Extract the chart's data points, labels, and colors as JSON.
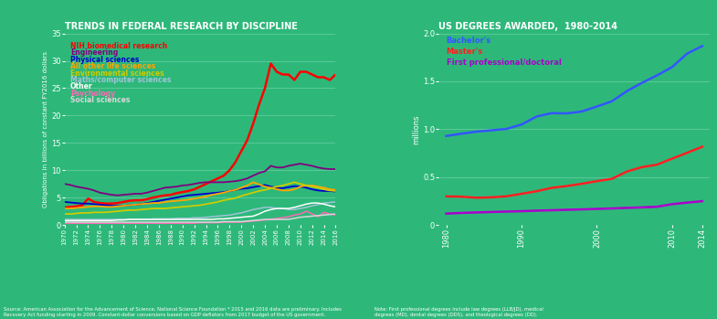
{
  "bg_color": "#2db87a",
  "left_title": "TRENDS IN FEDERAL RESEARCH BY DISCIPLINE",
  "right_title": "US DEGREES AWARDED,  1980-2014",
  "left_ylabel": "Obligations in billions of constant FY2016 dollars",
  "right_ylabel": "millions",
  "left_source": "Source: American Association for the Advancement of Science, National Science Foundation * 2015 and 2016 data are preliminary. Includes\nRecovery Act funding starting in 2009. Constant-dollar conversions based on GDP deflators from 2017 budget of the US government.",
  "right_note": "Note: First professional degrees include law degrees (LLB/JD), medical\ndegrees (MD), dental degrees (DDS), and theological degrees (DD).",
  "left_years": [
    1970,
    1971,
    1972,
    1973,
    1974,
    1975,
    1976,
    1977,
    1978,
    1979,
    1980,
    1981,
    1982,
    1983,
    1984,
    1985,
    1986,
    1987,
    1988,
    1989,
    1990,
    1991,
    1992,
    1993,
    1994,
    1995,
    1996,
    1997,
    1998,
    1999,
    2000,
    2001,
    2002,
    2003,
    2004,
    2005,
    2006,
    2007,
    2008,
    2009,
    2010,
    2011,
    2012,
    2013,
    2014,
    2015,
    2016
  ],
  "NIH": [
    3.2,
    3.3,
    3.4,
    3.6,
    4.8,
    4.2,
    4.0,
    3.9,
    3.9,
    4.0,
    4.2,
    4.4,
    4.5,
    4.5,
    4.7,
    5.0,
    5.2,
    5.4,
    5.5,
    5.8,
    6.0,
    6.2,
    6.5,
    7.0,
    7.5,
    8.0,
    8.5,
    9.0,
    10.0,
    11.5,
    13.5,
    15.5,
    18.5,
    22.0,
    25.0,
    29.5,
    28.0,
    27.5,
    27.5,
    26.5,
    28.0,
    28.0,
    27.5,
    27.0,
    27.0,
    26.5,
    27.5
  ],
  "NIH_color": "#ff0000",
  "Engineering": [
    7.5,
    7.3,
    7.0,
    6.8,
    6.6,
    6.3,
    5.9,
    5.7,
    5.5,
    5.4,
    5.5,
    5.6,
    5.7,
    5.7,
    5.9,
    6.2,
    6.5,
    6.8,
    6.9,
    7.0,
    7.2,
    7.3,
    7.5,
    7.7,
    7.8,
    7.8,
    7.8,
    7.8,
    7.9,
    8.0,
    8.2,
    8.5,
    9.0,
    9.5,
    9.8,
    10.8,
    10.5,
    10.5,
    10.8,
    11.0,
    11.2,
    11.0,
    10.8,
    10.5,
    10.3,
    10.2,
    10.2
  ],
  "Engineering_color": "#800080",
  "Physical": [
    4.2,
    4.1,
    4.0,
    3.9,
    3.9,
    3.8,
    3.7,
    3.6,
    3.5,
    3.5,
    3.5,
    3.6,
    3.7,
    3.8,
    4.0,
    4.2,
    4.4,
    4.6,
    4.8,
    5.0,
    5.2,
    5.4,
    5.5,
    5.6,
    5.7,
    5.8,
    5.9,
    6.0,
    6.2,
    6.4,
    6.6,
    6.7,
    6.9,
    7.1,
    7.3,
    7.0,
    6.8,
    6.7,
    6.9,
    7.1,
    7.0,
    6.8,
    6.5,
    6.3,
    6.2,
    6.2,
    6.1
  ],
  "Physical_color": "#0000cd",
  "AllOtherLife": [
    3.0,
    3.0,
    3.1,
    3.2,
    3.3,
    3.4,
    3.4,
    3.3,
    3.3,
    3.4,
    3.5,
    3.6,
    3.7,
    3.8,
    3.9,
    4.0,
    4.0,
    4.2,
    4.3,
    4.4,
    4.5,
    4.6,
    4.8,
    5.0,
    5.2,
    5.5,
    5.7,
    5.9,
    6.2,
    6.4,
    6.8,
    7.2,
    7.8,
    7.4,
    7.0,
    6.8,
    6.5,
    6.3,
    6.3,
    6.5,
    7.0,
    7.2,
    7.2,
    7.0,
    6.8,
    6.5,
    6.4
  ],
  "AllOtherLife_color": "#ffa500",
  "Environmental": [
    2.0,
    2.0,
    2.1,
    2.2,
    2.2,
    2.3,
    2.3,
    2.3,
    2.4,
    2.5,
    2.6,
    2.7,
    2.7,
    2.8,
    2.9,
    3.0,
    3.0,
    3.0,
    3.1,
    3.2,
    3.3,
    3.4,
    3.5,
    3.6,
    3.8,
    4.0,
    4.2,
    4.5,
    4.7,
    4.9,
    5.3,
    5.6,
    5.9,
    6.2,
    6.4,
    6.7,
    7.0,
    7.2,
    7.5,
    7.8,
    7.5,
    7.2,
    7.0,
    6.8,
    6.5,
    6.3,
    6.2
  ],
  "Environmental_color": "#cccc00",
  "Maths": [
    1.0,
    1.0,
    1.0,
    1.0,
    1.0,
    1.0,
    1.0,
    1.0,
    1.0,
    1.0,
    1.0,
    1.0,
    1.0,
    1.0,
    1.0,
    1.1,
    1.1,
    1.1,
    1.1,
    1.2,
    1.2,
    1.2,
    1.3,
    1.3,
    1.4,
    1.5,
    1.6,
    1.7,
    1.8,
    2.0,
    2.2,
    2.5,
    2.8,
    3.0,
    3.2,
    3.2,
    3.0,
    3.0,
    2.8,
    2.8,
    3.0,
    3.2,
    3.5,
    3.7,
    4.0,
    4.1,
    4.2
  ],
  "Maths_color": "#a0c4d8",
  "Other": [
    0.8,
    0.8,
    0.8,
    0.8,
    0.8,
    0.8,
    0.8,
    0.8,
    0.8,
    0.9,
    0.9,
    1.0,
    1.0,
    1.0,
    1.0,
    1.0,
    1.0,
    1.0,
    1.0,
    1.0,
    1.0,
    1.0,
    1.0,
    1.0,
    1.0,
    1.0,
    1.1,
    1.1,
    1.2,
    1.3,
    1.4,
    1.5,
    1.6,
    2.0,
    2.5,
    2.8,
    3.0,
    3.0,
    3.0,
    3.2,
    3.5,
    3.8,
    4.0,
    4.0,
    3.8,
    3.5,
    3.3
  ],
  "Other_color": "#ffffff",
  "Psychology": [
    0.3,
    0.3,
    0.3,
    0.3,
    0.3,
    0.3,
    0.3,
    0.3,
    0.3,
    0.3,
    0.3,
    0.3,
    0.3,
    0.3,
    0.3,
    0.3,
    0.3,
    0.3,
    0.3,
    0.3,
    0.3,
    0.3,
    0.3,
    0.4,
    0.4,
    0.4,
    0.4,
    0.5,
    0.5,
    0.5,
    0.5,
    0.6,
    0.7,
    0.8,
    0.9,
    1.0,
    1.2,
    1.3,
    1.5,
    1.8,
    2.0,
    2.5,
    2.0,
    1.5,
    2.3,
    2.0,
    1.8
  ],
  "Psychology_color": "#ff69b4",
  "Social": [
    0.5,
    0.5,
    0.5,
    0.5,
    0.5,
    0.5,
    0.5,
    0.5,
    0.5,
    0.5,
    0.5,
    0.5,
    0.5,
    0.5,
    0.5,
    0.5,
    0.5,
    0.5,
    0.5,
    0.5,
    0.5,
    0.5,
    0.5,
    0.5,
    0.5,
    0.5,
    0.5,
    0.6,
    0.6,
    0.6,
    0.6,
    0.7,
    0.8,
    0.9,
    1.0,
    1.0,
    1.0,
    1.0,
    1.0,
    1.2,
    1.4,
    1.5,
    1.6,
    1.7,
    1.8,
    1.9,
    2.0
  ],
  "Social_color": "#d8d8d8",
  "left_legend": [
    {
      "label": "NIH biomedical research",
      "color": "#ff0000"
    },
    {
      "label": "Engineering",
      "color": "#800080"
    },
    {
      "label": "Physical sciences",
      "color": "#0000cd"
    },
    {
      "label": "All other life sciences",
      "color": "#ffa500"
    },
    {
      "label": "Environmental sciences",
      "color": "#cccc00"
    },
    {
      "label": "Maths/computer sciences",
      "color": "#a0c4d8"
    },
    {
      "label": "Other",
      "color": "#ffffff"
    },
    {
      "label": "Psychology",
      "color": "#ff69b4"
    },
    {
      "label": "Social sciences",
      "color": "#d8d8d8"
    }
  ],
  "right_years": [
    1980,
    1982,
    1984,
    1986,
    1988,
    1990,
    1992,
    1994,
    1996,
    1998,
    2000,
    2002,
    2004,
    2006,
    2008,
    2010,
    2012,
    2014
  ],
  "Bachelor": [
    0.929,
    0.953,
    0.974,
    0.988,
    1.003,
    1.049,
    1.133,
    1.168,
    1.165,
    1.185,
    1.237,
    1.292,
    1.399,
    1.485,
    1.563,
    1.65,
    1.791,
    1.869
  ],
  "Bachelor_color": "#3355ff",
  "Masters": [
    0.298,
    0.295,
    0.284,
    0.288,
    0.299,
    0.325,
    0.352,
    0.387,
    0.406,
    0.43,
    0.457,
    0.482,
    0.558,
    0.604,
    0.63,
    0.693,
    0.754,
    0.817
  ],
  "Masters_color": "#ff2020",
  "FirstProf": [
    0.118,
    0.125,
    0.13,
    0.135,
    0.139,
    0.143,
    0.149,
    0.153,
    0.158,
    0.162,
    0.167,
    0.172,
    0.178,
    0.183,
    0.19,
    0.217,
    0.233,
    0.248
  ],
  "FirstProf_color": "#aa00cc",
  "right_legend": [
    {
      "label": "Bachelor's",
      "color": "#3355ff"
    },
    {
      "label": "Master's",
      "color": "#ff2020"
    },
    {
      "label": "First professional/doctoral",
      "color": "#aa00cc"
    }
  ],
  "left_ylim": [
    0,
    35
  ],
  "left_yticks": [
    0,
    5,
    10,
    15,
    20,
    25,
    30,
    35
  ],
  "left_xticks": [
    1970,
    1972,
    1974,
    1976,
    1978,
    1980,
    1982,
    1984,
    1986,
    1988,
    1990,
    1992,
    1994,
    1996,
    1998,
    2000,
    2002,
    2004,
    2006,
    2008,
    2010,
    2012,
    2014,
    2016
  ],
  "right_ylim": [
    0,
    2.0
  ],
  "right_yticks": [
    0,
    0.5,
    1.0,
    1.5,
    2.0
  ],
  "right_xticks": [
    1980,
    1990,
    2000,
    2010,
    2014
  ]
}
